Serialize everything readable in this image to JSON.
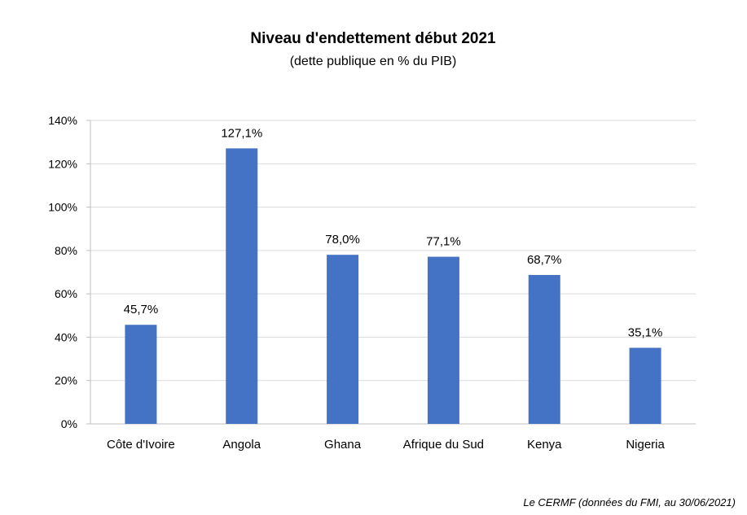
{
  "chart_data": {
    "type": "bar",
    "title": "Niveau d'endettement début 2021",
    "subtitle": "(dette publique en % du PIB)",
    "categories": [
      "Côte d'Ivoire",
      "Angola",
      "Ghana",
      "Afrique du Sud",
      "Kenya",
      "Nigeria"
    ],
    "values": [
      45.7,
      127.1,
      78.0,
      77.1,
      68.7,
      35.1
    ],
    "data_labels": [
      "45,7%",
      "127,1%",
      "78,0%",
      "77,1%",
      "68,7%",
      "35,1%"
    ],
    "y_ticks": [
      0,
      20,
      40,
      60,
      80,
      100,
      120,
      140
    ],
    "y_tick_labels": [
      "0%",
      "20%",
      "40%",
      "60%",
      "80%",
      "100%",
      "120%",
      "140%"
    ],
    "ylim": [
      0,
      140
    ],
    "grid": true,
    "bar_color": "#4472C4",
    "grid_color": "#D9D9D9",
    "source": "Le CERMF (données du FMI, au 30/06/2021)"
  }
}
